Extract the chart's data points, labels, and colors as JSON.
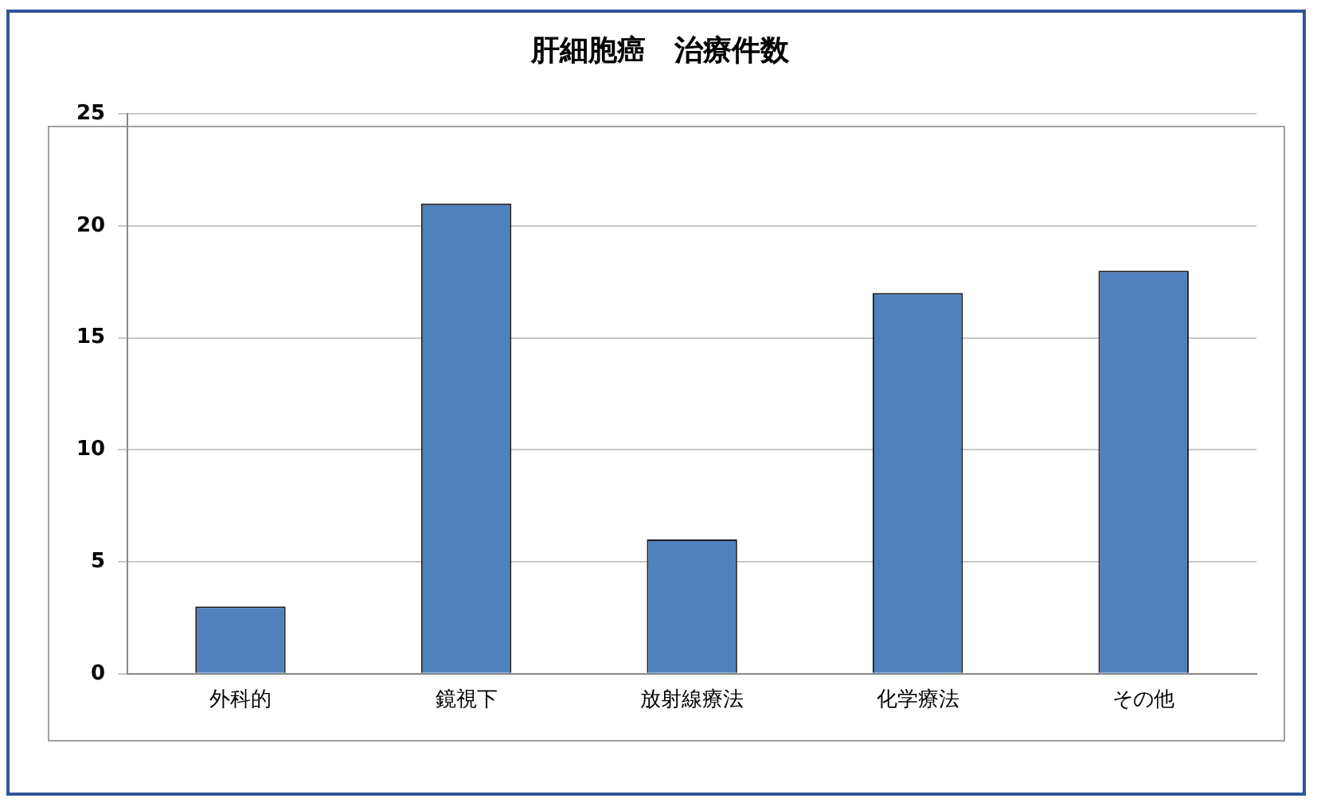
{
  "chart_data": {
    "type": "bar",
    "title": "肝細胞癌　治療件数",
    "categories": [
      "外科的",
      "鏡視下",
      "放射線療法",
      "化学療法",
      "その他"
    ],
    "values": [
      3,
      21,
      6,
      17,
      18
    ],
    "color": "#4f81bd",
    "ylim": [
      0,
      25
    ],
    "yticks": [
      0,
      5,
      10,
      15,
      20,
      25
    ],
    "grid": "y"
  }
}
